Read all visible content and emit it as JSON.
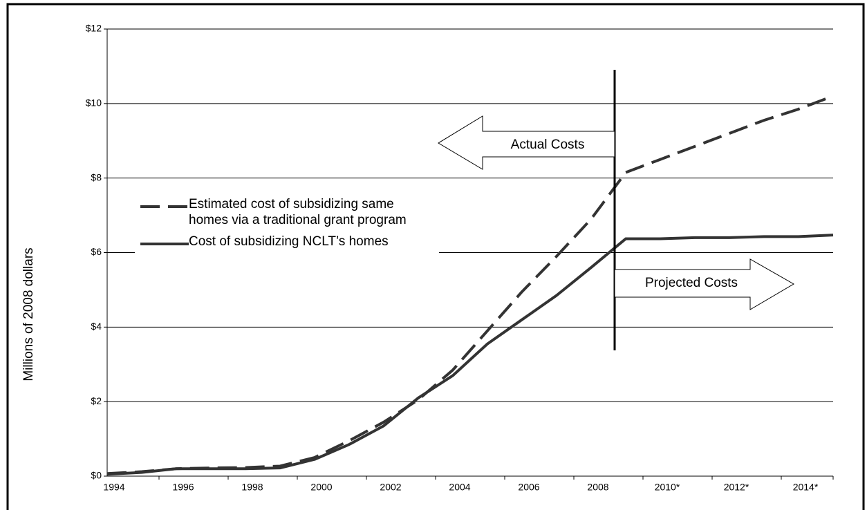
{
  "chart_data": {
    "type": "line",
    "y_label": "Millions of 2008 dollars",
    "categories": [
      "1994",
      null,
      "1996",
      null,
      "1998",
      null,
      "2000",
      null,
      "2002",
      null,
      "2004",
      null,
      "2006",
      null,
      "2008",
      null,
      "2010*",
      null,
      "2012*",
      null,
      "2014*",
      null
    ],
    "series": [
      {
        "name": "Estimated cost of subsidizing same homes via a traditional grant program",
        "color": "#333333",
        "dash": true,
        "values": [
          0.07,
          0.12,
          0.2,
          0.22,
          0.23,
          0.27,
          0.5,
          0.95,
          1.45,
          2.05,
          2.85,
          3.9,
          4.95,
          5.9,
          6.9,
          8.15,
          8.5,
          8.85,
          9.2,
          9.55,
          9.85,
          10.2
        ]
      },
      {
        "name": "Cost of subsidizing NCLT’s homes",
        "color": "#333333",
        "dash": false,
        "values": [
          0.05,
          0.1,
          0.2,
          0.2,
          0.2,
          0.22,
          0.45,
          0.85,
          1.35,
          2.1,
          2.7,
          3.55,
          4.2,
          4.85,
          5.6,
          6.37,
          6.37,
          6.4,
          6.4,
          6.43,
          6.43,
          6.47
        ]
      }
    ],
    "ylim": [
      0,
      12
    ],
    "yticks": [
      {
        "value": 0,
        "label": "$0"
      },
      {
        "value": 2,
        "label": "$2"
      },
      {
        "value": 4,
        "label": "$4"
      },
      {
        "value": 6,
        "label": "$6"
      },
      {
        "value": 8,
        "label": "$8"
      },
      {
        "value": 10,
        "label": "$10"
      },
      {
        "value": 12,
        "label": "$12"
      }
    ],
    "grid": true,
    "annotations": [
      "Actual Costs",
      "Projected Costs"
    ]
  }
}
